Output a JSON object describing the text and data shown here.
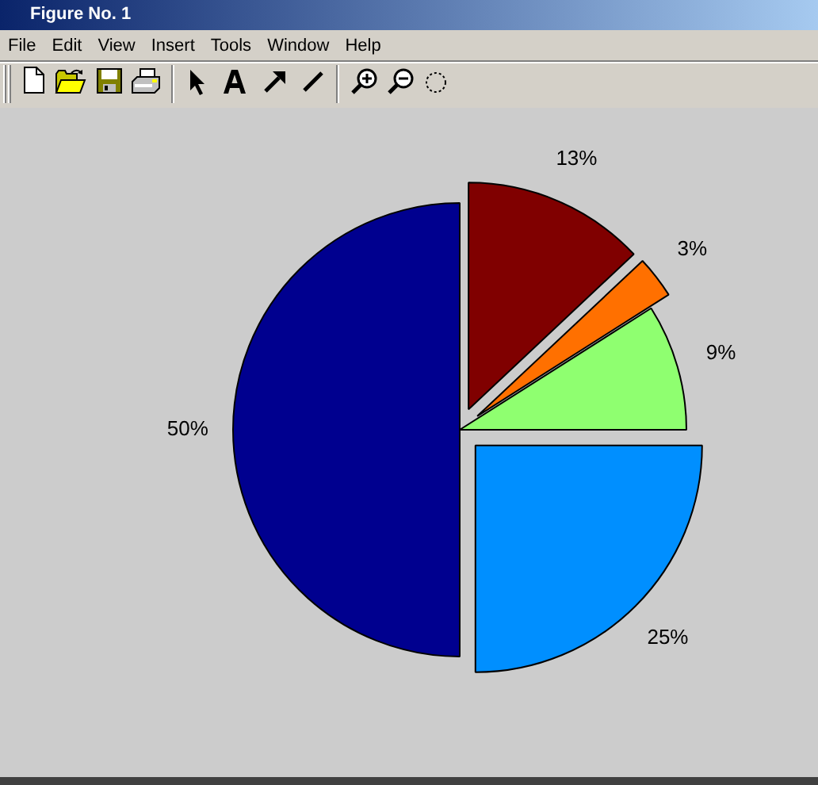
{
  "chart_data": {
    "type": "pie",
    "title": "Figure No. 1",
    "categories": [
      null,
      null,
      null,
      null,
      null
    ],
    "values": [
      13,
      3,
      9,
      25,
      50
    ],
    "colors": [
      "#800000",
      "#ff7000",
      "#8fff70",
      "#008fff",
      "#00008f"
    ],
    "value_labels": [
      "13%",
      "3%",
      "9%",
      "25%",
      "50%"
    ],
    "annotations": [
      "File",
      "Edit",
      "View",
      "Insert",
      "Tools",
      "Window",
      "Help"
    ]
  }
}
